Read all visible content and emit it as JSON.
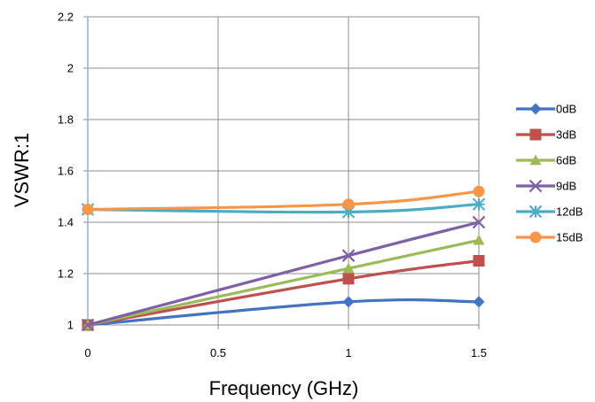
{
  "chart_data": {
    "type": "line",
    "xlabel": "Frequency (GHz)",
    "ylabel": "VSWR:1",
    "xlim": [
      0,
      1.5
    ],
    "ylim": [
      1,
      2.2
    ],
    "x_ticks": [
      "0",
      "0.5",
      "1",
      "1.5"
    ],
    "y_ticks": [
      "1",
      "1.2",
      "1.4",
      "1.6",
      "1.8",
      "2",
      "2.2"
    ],
    "grid": true,
    "legend_position": "right",
    "x": [
      0,
      1,
      1.5
    ],
    "series": [
      {
        "name": "0dB",
        "values": [
          1.0,
          1.09,
          1.09
        ],
        "color": "#4472C4",
        "marker": "diamond"
      },
      {
        "name": "3dB",
        "values": [
          1.0,
          1.18,
          1.25
        ],
        "color": "#C0504D",
        "marker": "square"
      },
      {
        "name": "6dB",
        "values": [
          1.0,
          1.22,
          1.33
        ],
        "color": "#9BBB59",
        "marker": "triangle"
      },
      {
        "name": "9dB",
        "values": [
          1.0,
          1.27,
          1.4
        ],
        "color": "#7F5FA6",
        "marker": "x"
      },
      {
        "name": "12dB",
        "values": [
          1.45,
          1.44,
          1.47
        ],
        "color": "#4BACC6",
        "marker": "asterisk"
      },
      {
        "name": "15dB",
        "values": [
          1.45,
          1.47,
          1.52
        ],
        "color": "#F79646",
        "marker": "circle"
      }
    ]
  }
}
